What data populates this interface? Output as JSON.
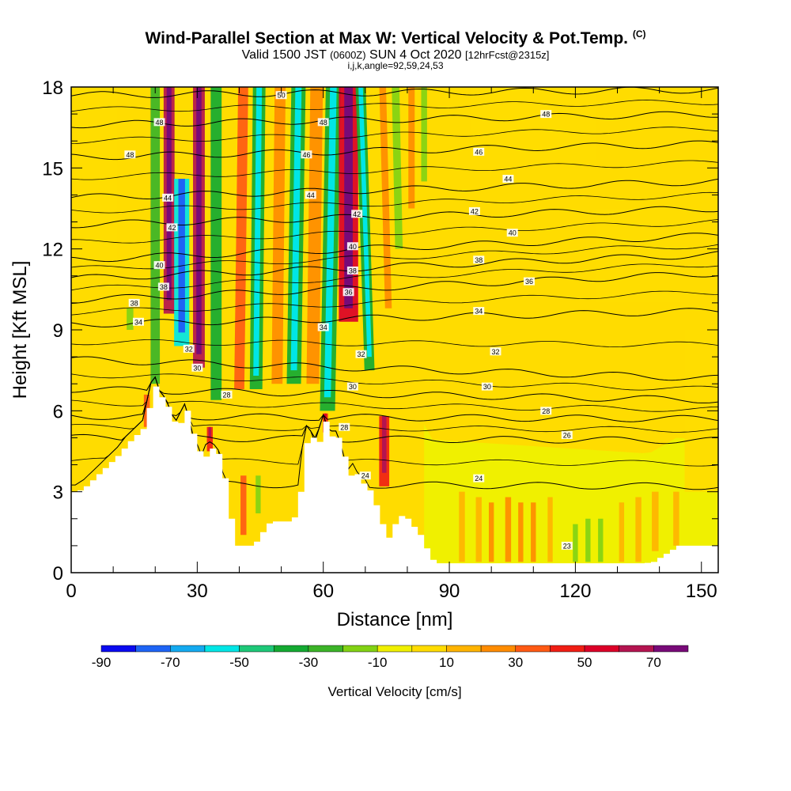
{
  "title": {
    "main": "Wind-Parallel Section at Max W: Vertical Velocity & Pot.Temp.",
    "main_suffix": "(C)",
    "valid_prefix": "Valid 1500 JST",
    "valid_zulu": "(0600Z)",
    "valid_date": "SUN 4 Oct 2020",
    "valid_fcst": "[12hrFcst@2315z]",
    "ijk": "i,j,k,angle=92,59,24,53"
  },
  "chart_data": {
    "type": "heatmap",
    "xlabel": "Distance [nm]",
    "ylabel": "Height [Kft MSL]",
    "xlim": [
      0,
      154
    ],
    "ylim": [
      0,
      18
    ],
    "x_ticks": [
      0,
      30,
      60,
      90,
      120,
      150
    ],
    "y_ticks": [
      0,
      3,
      6,
      9,
      12,
      15,
      18
    ],
    "colorbar": {
      "label": "Vertical Velocity [cm/s]",
      "bounds": [
        -90,
        -80,
        -70,
        -60,
        -50,
        -40,
        -30,
        -20,
        -10,
        0,
        10,
        20,
        30,
        40,
        50,
        60,
        70,
        80
      ],
      "tick_labels": [
        "-90",
        "-70",
        "-50",
        "-30",
        "-10",
        "10",
        "30",
        "50",
        "70"
      ],
      "colors": [
        "#0a0af0",
        "#1e64f5",
        "#14aaf0",
        "#00e6e6",
        "#1ec878",
        "#14aa32",
        "#3cb428",
        "#82d214",
        "#f0f000",
        "#ffdc00",
        "#ffb400",
        "#ff8c00",
        "#ff5a14",
        "#f01e14",
        "#dc0028",
        "#b41450",
        "#780a78"
      ]
    },
    "terrain": [
      [
        0,
        3.0
      ],
      [
        1,
        3.0
      ],
      [
        3,
        3.2
      ],
      [
        5,
        3.5
      ],
      [
        7,
        3.8
      ],
      [
        9,
        4.1
      ],
      [
        11,
        4.4
      ],
      [
        13,
        4.8
      ],
      [
        15,
        5.1
      ],
      [
        17,
        5.4
      ],
      [
        18,
        6.1
      ],
      [
        19,
        6.8
      ],
      [
        20,
        7.0
      ],
      [
        21,
        6.5
      ],
      [
        22,
        6.3
      ],
      [
        23,
        6.0
      ],
      [
        24,
        5.6
      ],
      [
        25,
        5.4
      ],
      [
        26,
        5.7
      ],
      [
        27,
        6.0
      ],
      [
        28,
        5.5
      ],
      [
        29,
        4.8
      ],
      [
        30,
        4.5
      ],
      [
        31,
        4.1
      ],
      [
        32,
        4.5
      ],
      [
        33,
        4.6
      ],
      [
        34,
        4.5
      ],
      [
        35,
        4.3
      ],
      [
        36,
        3.5
      ],
      [
        37,
        2.5
      ],
      [
        38,
        1.5
      ],
      [
        39,
        1.0
      ],
      [
        40,
        1.0
      ],
      [
        42,
        1.0
      ],
      [
        44,
        1.2
      ],
      [
        46,
        1.8
      ],
      [
        48,
        1.9
      ],
      [
        50,
        1.9
      ],
      [
        52,
        1.9
      ],
      [
        53,
        2.2
      ],
      [
        54,
        3.0
      ],
      [
        55,
        4.4
      ],
      [
        56,
        5.2
      ],
      [
        57,
        5.0
      ],
      [
        58,
        4.6
      ],
      [
        59,
        5.1
      ],
      [
        60,
        5.6
      ],
      [
        61,
        5.1
      ],
      [
        62,
        5.0
      ],
      [
        63,
        5.0
      ],
      [
        64,
        4.6
      ],
      [
        65,
        4.0
      ],
      [
        66,
        3.6
      ],
      [
        67,
        3.8
      ],
      [
        68,
        3.5
      ],
      [
        69,
        3.3
      ],
      [
        70,
        3.2
      ],
      [
        71,
        2.9
      ],
      [
        72,
        2.5
      ],
      [
        73,
        1.9
      ],
      [
        74,
        1.7
      ],
      [
        75,
        1.3
      ],
      [
        76,
        1.6
      ],
      [
        77,
        2.0
      ],
      [
        78,
        2.1
      ],
      [
        79,
        2.0
      ],
      [
        80,
        2.0
      ],
      [
        81,
        1.7
      ],
      [
        82,
        1.6
      ],
      [
        83,
        1.2
      ],
      [
        84,
        0.9
      ],
      [
        85,
        0.6
      ],
      [
        86,
        0.35
      ],
      [
        90,
        0.35
      ],
      [
        100,
        0.35
      ],
      [
        110,
        0.35
      ],
      [
        120,
        0.35
      ],
      [
        135,
        0.35
      ],
      [
        136,
        0.35
      ],
      [
        138,
        0.4
      ],
      [
        140,
        0.6
      ],
      [
        142,
        0.8
      ],
      [
        143,
        0.9
      ],
      [
        144,
        1.0
      ],
      [
        154,
        1.0
      ]
    ],
    "isentropes": [
      {
        "level": 24,
        "label": "24",
        "y_left": 3.3,
        "y_right": 3.2
      },
      {
        "level": 26,
        "label": "26",
        "y_left": 5.0,
        "y_right": 4.9
      },
      {
        "level": 28,
        "label": "28",
        "y_left": 5.8,
        "y_right": 5.7
      },
      {
        "level": 30,
        "label": "30",
        "y_left": 6.8,
        "y_right": 6.4
      },
      {
        "level": 32,
        "label": "32",
        "y_left": 7.9,
        "y_right": 7.2
      },
      {
        "level": 34,
        "label": "34",
        "y_left": 9.2,
        "y_right": 9.7
      },
      {
        "level": 36,
        "label": "36",
        "y_left": 10.1,
        "y_right": 11.1
      },
      {
        "level": 38,
        "label": "38",
        "y_left": 10.9,
        "y_right": 11.8
      },
      {
        "level": 40,
        "label": "40",
        "y_left": 11.6,
        "y_right": 12.5
      },
      {
        "level": 42,
        "label": "42",
        "y_left": 12.9,
        "y_right": 13.5
      },
      {
        "level": 44,
        "label": "44",
        "y_left": 13.9,
        "y_right": 14.5
      },
      {
        "level": 46,
        "label": "46",
        "y_left": 15.4,
        "y_right": 15.9
      },
      {
        "level": 48,
        "label": "48",
        "y_left": 16.6,
        "y_right": 17.0
      },
      {
        "level": 50,
        "label": "50",
        "y_left": 17.7,
        "y_right": 17.9
      }
    ],
    "contour_labels": [
      {
        "text": "50",
        "x": 50,
        "y": 17.7
      },
      {
        "text": "48",
        "x": 21,
        "y": 16.7
      },
      {
        "text": "48",
        "x": 60,
        "y": 16.7
      },
      {
        "text": "48",
        "x": 113,
        "y": 17.0
      },
      {
        "text": "48",
        "x": 14,
        "y": 15.5
      },
      {
        "text": "46",
        "x": 56,
        "y": 15.5
      },
      {
        "text": "46",
        "x": 97,
        "y": 15.6
      },
      {
        "text": "44",
        "x": 104,
        "y": 14.6
      },
      {
        "text": "44",
        "x": 23,
        "y": 13.9
      },
      {
        "text": "44",
        "x": 57,
        "y": 14.0
      },
      {
        "text": "42",
        "x": 68,
        "y": 13.3
      },
      {
        "text": "42",
        "x": 96,
        "y": 13.4
      },
      {
        "text": "42",
        "x": 24,
        "y": 12.8
      },
      {
        "text": "40",
        "x": 105,
        "y": 12.6
      },
      {
        "text": "40",
        "x": 67,
        "y": 12.1
      },
      {
        "text": "40",
        "x": 21,
        "y": 11.4
      },
      {
        "text": "38",
        "x": 97,
        "y": 11.6
      },
      {
        "text": "38",
        "x": 67,
        "y": 11.2
      },
      {
        "text": "38",
        "x": 22,
        "y": 10.6
      },
      {
        "text": "38",
        "x": 15,
        "y": 10.0
      },
      {
        "text": "36",
        "x": 109,
        "y": 10.8
      },
      {
        "text": "36",
        "x": 66,
        "y": 10.4
      },
      {
        "text": "34",
        "x": 97,
        "y": 9.7
      },
      {
        "text": "34",
        "x": 16,
        "y": 9.3
      },
      {
        "text": "34",
        "x": 60,
        "y": 9.1
      },
      {
        "text": "32",
        "x": 28,
        "y": 8.3
      },
      {
        "text": "32",
        "x": 69,
        "y": 8.1
      },
      {
        "text": "32",
        "x": 101,
        "y": 8.2
      },
      {
        "text": "30",
        "x": 30,
        "y": 7.6
      },
      {
        "text": "30",
        "x": 67,
        "y": 6.9
      },
      {
        "text": "30",
        "x": 99,
        "y": 6.9
      },
      {
        "text": "28",
        "x": 37,
        "y": 6.6
      },
      {
        "text": "28",
        "x": 113,
        "y": 6.0
      },
      {
        "text": "28",
        "x": 65,
        "y": 5.4
      },
      {
        "text": "26",
        "x": 118,
        "y": 5.1
      },
      {
        "text": "24",
        "x": 97,
        "y": 3.5
      },
      {
        "text": "24",
        "x": 70,
        "y": 3.6
      },
      {
        "text": "23",
        "x": 118,
        "y": 1.0
      }
    ],
    "velocity_bands": [
      {
        "x": 20,
        "w": 2.2,
        "lean": 0,
        "bottom": 7.0,
        "top": 18,
        "value": -30
      },
      {
        "x": 23.3,
        "w": 2.6,
        "lean": 0,
        "bottom": 9.6,
        "top": 18,
        "value": 60
      },
      {
        "x": 26.3,
        "w": 3.6,
        "lean": 0,
        "bottom": 8.4,
        "top": 14.6,
        "value": -60
      },
      {
        "x": 30.4,
        "w": 2.8,
        "lean": 0,
        "bottom": 7.6,
        "top": 18,
        "value": 65
      },
      {
        "x": 34.5,
        "w": 2.6,
        "lean": 0,
        "bottom": 6.4,
        "top": 18,
        "value": -35
      },
      {
        "x": 40,
        "w": 2.4,
        "lean": 0.5,
        "bottom": 6.8,
        "top": 18,
        "value": 30
      },
      {
        "x": 44,
        "w": 3.0,
        "lean": 0.4,
        "bottom": 6.8,
        "top": 18,
        "value": -40
      },
      {
        "x": 49,
        "w": 2.6,
        "lean": 0.4,
        "bottom": 7.0,
        "top": 18,
        "value": 25
      },
      {
        "x": 53,
        "w": 3.4,
        "lean": 0.6,
        "bottom": 7.0,
        "top": 18,
        "value": -40
      },
      {
        "x": 57.5,
        "w": 3.0,
        "lean": 0.5,
        "bottom": 7.0,
        "top": 18,
        "value": 25
      },
      {
        "x": 61,
        "w": 3.6,
        "lean": 0.7,
        "bottom": 6.0,
        "top": 18,
        "value": -40
      },
      {
        "x": 66,
        "w": 4.6,
        "lean": 0,
        "bottom": 9.3,
        "top": 18,
        "value": 55
      },
      {
        "x": 71,
        "w": 2.4,
        "lean": -1.2,
        "bottom": 7.5,
        "top": 18,
        "value": -40
      },
      {
        "x": 75.5,
        "w": 1.6,
        "lean": -1.0,
        "bottom": 9.8,
        "top": 18,
        "value": 20
      },
      {
        "x": 78,
        "w": 1.8,
        "lean": -0.8,
        "bottom": 12.0,
        "top": 18,
        "value": -20
      },
      {
        "x": 81,
        "w": 1.5,
        "lean": 0,
        "bottom": 13.5,
        "top": 18,
        "value": 20
      },
      {
        "x": 84,
        "w": 1.4,
        "lean": 0,
        "bottom": 14.5,
        "top": 18,
        "value": -15
      },
      {
        "x": 74.5,
        "w": 2.4,
        "lean": 0,
        "bottom": 3.2,
        "top": 5.8,
        "value": 45
      },
      {
        "x": 33,
        "w": 1.4,
        "lean": 0,
        "bottom": 4.5,
        "top": 5.4,
        "value": 45
      },
      {
        "x": 41,
        "w": 1.4,
        "lean": 0,
        "bottom": 1.4,
        "top": 3.6,
        "value": 35
      },
      {
        "x": 44.5,
        "w": 1.2,
        "lean": 0,
        "bottom": 2.2,
        "top": 3.6,
        "value": -15
      },
      {
        "x": 60.5,
        "w": 1.2,
        "lean": 0,
        "bottom": 5.2,
        "top": 5.9,
        "value": 40
      },
      {
        "x": 18,
        "w": 1.4,
        "lean": 0,
        "bottom": 5.4,
        "top": 6.6,
        "value": 35
      },
      {
        "x": 14,
        "w": 1.6,
        "lean": 0,
        "bottom": 9.0,
        "top": 9.8,
        "value": -15
      },
      {
        "x": 93,
        "w": 1.4,
        "lean": 0,
        "bottom": 0.4,
        "top": 3.0,
        "value": 15
      },
      {
        "x": 97,
        "w": 1.4,
        "lean": 0,
        "bottom": 0.4,
        "top": 2.8,
        "value": 15
      },
      {
        "x": 100,
        "w": 1.2,
        "lean": 0,
        "bottom": 0.4,
        "top": 2.6,
        "value": 20
      },
      {
        "x": 104,
        "w": 1.4,
        "lean": 0,
        "bottom": 0.4,
        "top": 2.8,
        "value": 25
      },
      {
        "x": 107,
        "w": 1.2,
        "lean": 0,
        "bottom": 0.4,
        "top": 2.6,
        "value": 20
      },
      {
        "x": 110,
        "w": 1.2,
        "lean": 0,
        "bottom": 0.4,
        "top": 2.6,
        "value": 20
      },
      {
        "x": 114,
        "w": 1.2,
        "lean": 0,
        "bottom": 0.4,
        "top": 2.8,
        "value": 15
      },
      {
        "x": 120,
        "w": 1.2,
        "lean": 0,
        "bottom": 0.4,
        "top": 1.8,
        "value": -15
      },
      {
        "x": 123,
        "w": 1.2,
        "lean": 0,
        "bottom": 0.4,
        "top": 2.0,
        "value": -20
      },
      {
        "x": 126,
        "w": 1.2,
        "lean": 0,
        "bottom": 0.4,
        "top": 2.0,
        "value": -15
      },
      {
        "x": 131,
        "w": 1.2,
        "lean": 0,
        "bottom": 0.4,
        "top": 2.6,
        "value": 15
      },
      {
        "x": 135,
        "w": 1.4,
        "lean": 0,
        "bottom": 0.4,
        "top": 2.8,
        "value": 15
      },
      {
        "x": 139,
        "w": 1.6,
        "lean": 0,
        "bottom": 0.8,
        "top": 3.0,
        "value": 15
      },
      {
        "x": 144,
        "w": 1.4,
        "lean": 0,
        "bottom": 1.0,
        "top": 3.0,
        "value": 15
      },
      {
        "x": 110,
        "w": 30,
        "lean": 0,
        "bottom": 15.3,
        "top": 18,
        "value": 5
      },
      {
        "x": 135,
        "w": 20,
        "lean": 0,
        "bottom": 10.0,
        "top": 13.5,
        "value": 5
      },
      {
        "x": 150,
        "w": 8,
        "lean": 0,
        "bottom": 3.0,
        "top": 9.0,
        "value": 5
      },
      {
        "x": 6,
        "w": 10,
        "lean": 0,
        "bottom": 11.0,
        "top": 18,
        "value": 5
      }
    ]
  }
}
